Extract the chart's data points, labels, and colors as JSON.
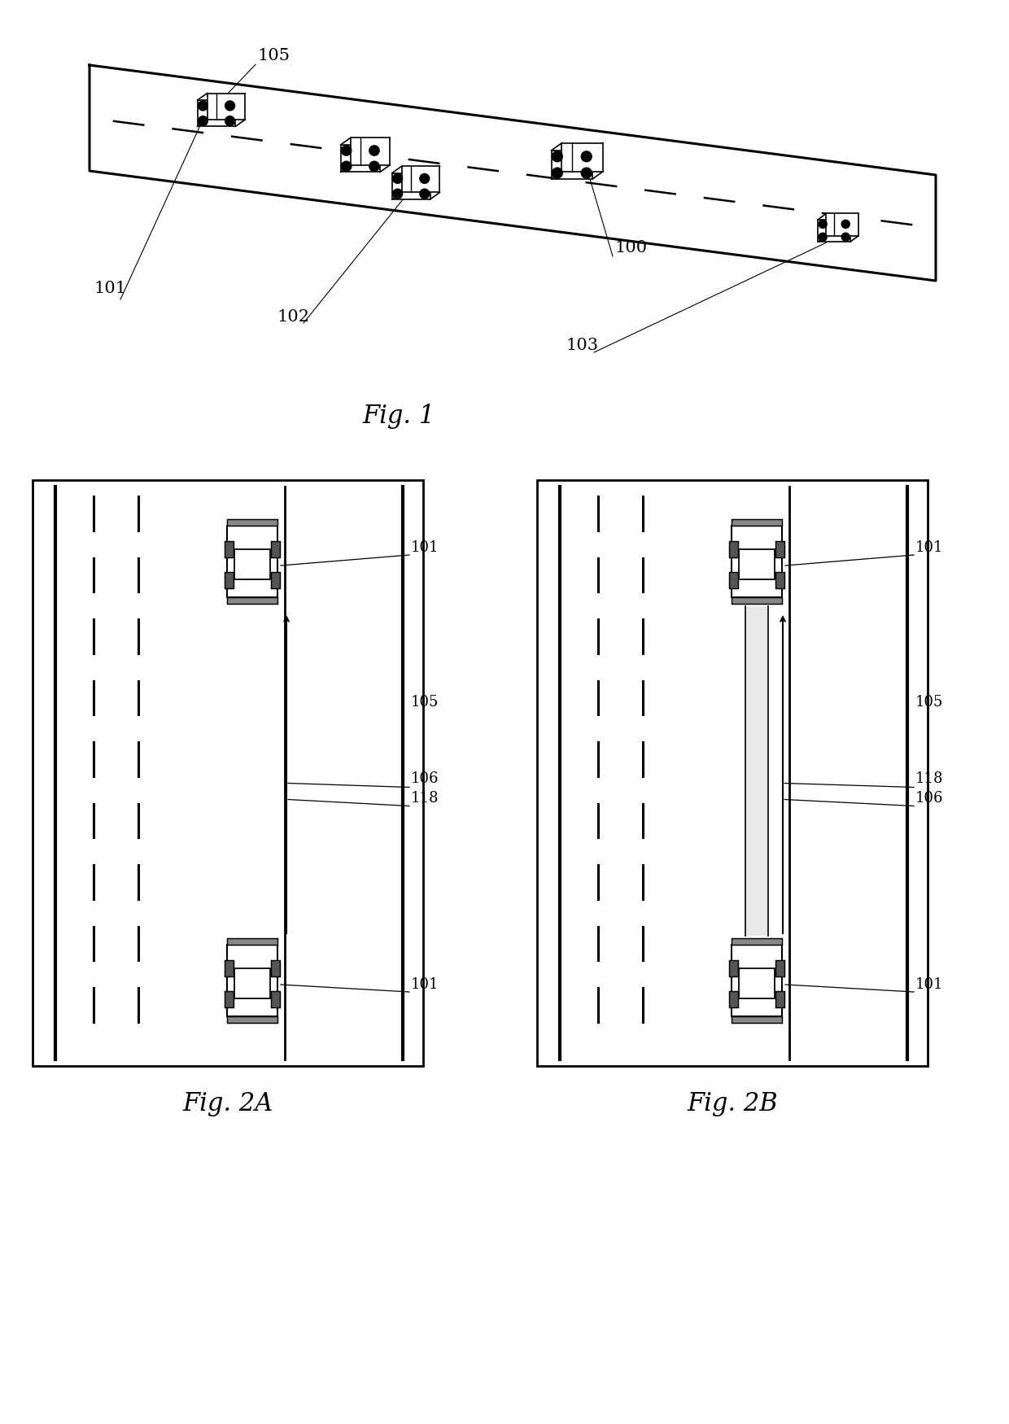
{
  "bg_color": "#ffffff",
  "lc": "#000000",
  "fig1_label": "Fig. 1",
  "fig2a_label": "Fig. 2A",
  "fig2b_label": "Fig. 2B",
  "figsize": [
    12.4,
    17.5
  ],
  "dpi": 100
}
